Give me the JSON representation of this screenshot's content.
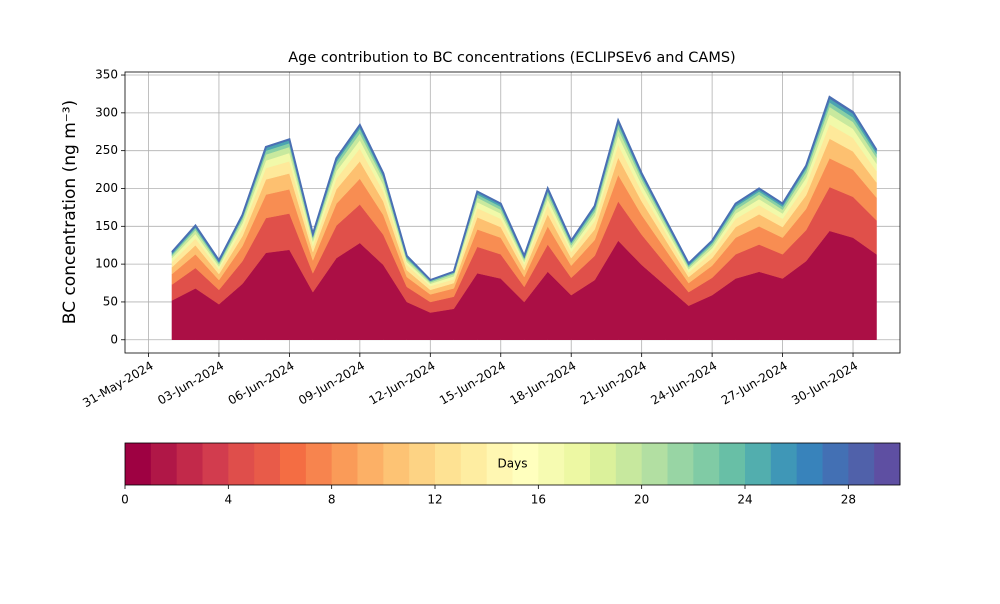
{
  "chart_data": {
    "type": "stacked_area",
    "title": "Age contribution to BC concentrations (ECLIPSEv6 and CAMS)",
    "ylabel": "BC concentration (ng m⁻³)",
    "x": [
      "2024-06-01",
      "2024-06-02",
      "2024-06-03",
      "2024-06-04",
      "2024-06-05",
      "2024-06-06",
      "2024-06-07",
      "2024-06-08",
      "2024-06-09",
      "2024-06-10",
      "2024-06-11",
      "2024-06-12",
      "2024-06-13",
      "2024-06-14",
      "2024-06-15",
      "2024-06-16",
      "2024-06-17",
      "2024-06-18",
      "2024-06-19",
      "2024-06-20",
      "2024-06-21",
      "2024-06-22",
      "2024-06-23",
      "2024-06-24",
      "2024-06-25",
      "2024-06-26",
      "2024-06-27",
      "2024-06-28",
      "2024-06-29",
      "2024-06-30",
      "2024-07-01"
    ],
    "series": [
      {
        "color": "#ab0f45",
        "values": [
          52,
          68,
          47,
          74,
          115,
          119,
          63,
          108,
          128,
          99,
          50,
          36,
          41,
          88,
          81,
          50,
          90,
          59,
          79,
          131,
          99,
          72,
          45,
          59,
          81,
          90,
          81,
          104,
          144,
          135,
          113
        ]
      },
      {
        "color": "#e0504a",
        "values": [
          21,
          27,
          19,
          30,
          46,
          48,
          25,
          43,
          51,
          40,
          20,
          14,
          16,
          35,
          32,
          20,
          36,
          23,
          32,
          52,
          40,
          29,
          18,
          23,
          32,
          36,
          32,
          41,
          58,
          54,
          45
        ]
      },
      {
        "color": "#f88d52",
        "values": [
          14,
          18,
          13,
          20,
          31,
          32,
          17,
          29,
          34,
          26,
          13,
          10,
          11,
          23,
          22,
          13,
          24,
          16,
          21,
          35,
          26,
          19,
          12,
          16,
          22,
          24,
          22,
          28,
          38,
          36,
          30
        ]
      },
      {
        "color": "#fdc070",
        "values": [
          9,
          12,
          8,
          13,
          20,
          21,
          11,
          19,
          23,
          18,
          9,
          6,
          7,
          16,
          14,
          9,
          16,
          10,
          14,
          23,
          18,
          13,
          8,
          10,
          14,
          16,
          14,
          18,
          26,
          24,
          20
        ]
      },
      {
        "color": "#fee99a",
        "values": [
          7,
          9,
          6,
          10,
          15,
          16,
          8,
          14,
          17,
          13,
          7,
          5,
          5,
          12,
          11,
          7,
          12,
          8,
          11,
          17,
          13,
          10,
          6,
          8,
          11,
          12,
          11,
          14,
          19,
          18,
          15
        ]
      },
      {
        "color": "#f1f9a9",
        "values": [
          5,
          6,
          4,
          7,
          10,
          11,
          6,
          10,
          11,
          9,
          4,
          3,
          4,
          8,
          7,
          4,
          8,
          5,
          7,
          12,
          9,
          6,
          4,
          5,
          7,
          8,
          7,
          9,
          13,
          12,
          10
        ]
      },
      {
        "color": "#c8e99e",
        "values": [
          3,
          5,
          3,
          5,
          8,
          8,
          4,
          7,
          9,
          7,
          3,
          2,
          3,
          6,
          5,
          3,
          6,
          4,
          5,
          9,
          7,
          5,
          3,
          4,
          5,
          6,
          5,
          7,
          10,
          9,
          8
        ]
      },
      {
        "color": "#88cfa4",
        "values": [
          2,
          3,
          2,
          3,
          5,
          5,
          3,
          5,
          6,
          4,
          2,
          2,
          2,
          4,
          4,
          2,
          4,
          3,
          4,
          6,
          4,
          3,
          2,
          3,
          4,
          4,
          4,
          5,
          6,
          6,
          5
        ]
      },
      {
        "color": "#4ba4b1",
        "values": [
          2,
          2,
          2,
          2,
          4,
          4,
          2,
          4,
          4,
          3,
          2,
          1,
          1,
          3,
          3,
          2,
          3,
          2,
          3,
          4,
          3,
          2,
          2,
          2,
          3,
          3,
          3,
          3,
          5,
          5,
          4
        ]
      },
      {
        "color": "#4a6fb3",
        "values": [
          1,
          1,
          1,
          1,
          1,
          1,
          1,
          1,
          1,
          1,
          1,
          0,
          0,
          1,
          1,
          1,
          1,
          1,
          1,
          1,
          1,
          1,
          1,
          1,
          1,
          1,
          1,
          1,
          2,
          2,
          1
        ]
      }
    ],
    "xlim": [
      "2024-05-30",
      "2024-07-02"
    ],
    "xticks": [
      {
        "value": "2024-05-31",
        "label": "31-May-2024"
      },
      {
        "value": "2024-06-03",
        "label": "03-Jun-2024"
      },
      {
        "value": "2024-06-06",
        "label": "06-Jun-2024"
      },
      {
        "value": "2024-06-09",
        "label": "09-Jun-2024"
      },
      {
        "value": "2024-06-12",
        "label": "12-Jun-2024"
      },
      {
        "value": "2024-06-15",
        "label": "15-Jun-2024"
      },
      {
        "value": "2024-06-18",
        "label": "18-Jun-2024"
      },
      {
        "value": "2024-06-21",
        "label": "21-Jun-2024"
      },
      {
        "value": "2024-06-24",
        "label": "24-Jun-2024"
      },
      {
        "value": "2024-06-27",
        "label": "27-Jun-2024"
      },
      {
        "value": "2024-06-30",
        "label": "30-Jun-2024"
      }
    ],
    "ylim": [
      -17.5,
      354
    ],
    "yticks": [
      0,
      50,
      100,
      150,
      200,
      250,
      300,
      350
    ],
    "grid": true,
    "colorbar": {
      "label": "Days",
      "lim": [
        0,
        30
      ],
      "ticks": [
        0,
        4,
        8,
        12,
        16,
        20,
        24,
        28
      ],
      "colors": [
        "#9e0142",
        "#b01747",
        "#c2294a",
        "#d23c4e",
        "#df4e4b",
        "#e85b49",
        "#f46d43",
        "#f7844e",
        "#fa9b58",
        "#fcb066",
        "#fdc374",
        "#fdd384",
        "#fee293",
        "#feeda1",
        "#fff7b2",
        "#ffffbe",
        "#f6fbb1",
        "#edf8a3",
        "#dbf19b",
        "#c7e89e",
        "#b2dfa2",
        "#98d5a4",
        "#80cba5",
        "#68bfa6",
        "#52aeae",
        "#3f97b7",
        "#3883bb",
        "#4370b4",
        "#5061aa",
        "#5e4fa2"
      ]
    }
  }
}
